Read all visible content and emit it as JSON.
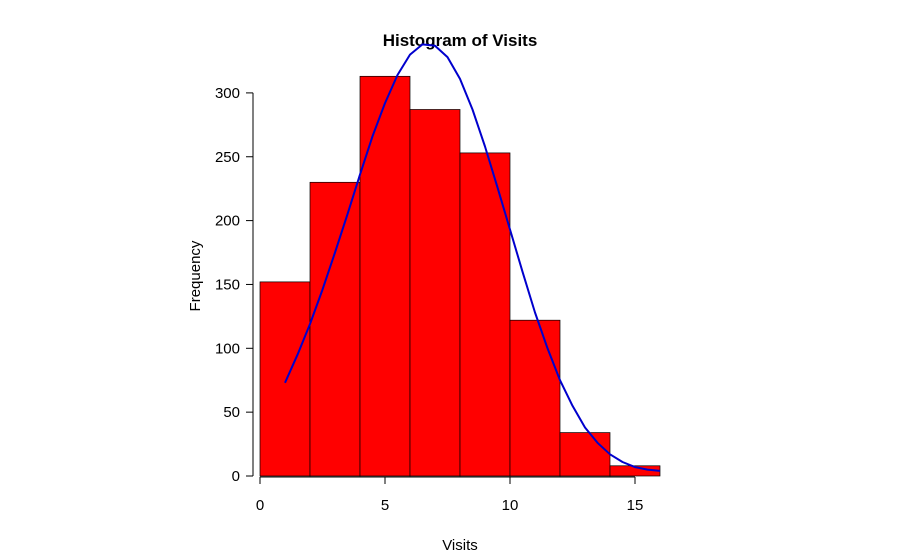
{
  "chart_data": {
    "type": "bar",
    "title": "Histogram of Visits",
    "xlabel": "Visits",
    "ylabel": "Frequency",
    "bins": [
      {
        "start": 0,
        "end": 2,
        "count": 152
      },
      {
        "start": 2,
        "end": 4,
        "count": 230
      },
      {
        "start": 4,
        "end": 6,
        "count": 313
      },
      {
        "start": 6,
        "end": 8,
        "count": 287
      },
      {
        "start": 8,
        "end": 10,
        "count": 253
      },
      {
        "start": 10,
        "end": 12,
        "count": 122
      },
      {
        "start": 12,
        "end": 14,
        "count": 34
      },
      {
        "start": 14,
        "end": 16,
        "count": 8
      }
    ],
    "x_ticks": [
      0,
      5,
      10,
      15
    ],
    "y_ticks": [
      0,
      50,
      100,
      150,
      200,
      250,
      300
    ],
    "xlim": [
      0,
      16
    ],
    "ylim": [
      0,
      313
    ],
    "bar_color": "#ff0000",
    "bar_edge_color": "#000000",
    "curve": {
      "color": "#0000cd",
      "points": [
        [
          1.0,
          73
        ],
        [
          1.5,
          95
        ],
        [
          2.0,
          119
        ],
        [
          2.5,
          146
        ],
        [
          3.0,
          175
        ],
        [
          3.5,
          205
        ],
        [
          4.0,
          236
        ],
        [
          4.5,
          266
        ],
        [
          5.0,
          292
        ],
        [
          5.5,
          314
        ],
        [
          6.0,
          330
        ],
        [
          6.5,
          338
        ],
        [
          7.0,
          337
        ],
        [
          7.5,
          328
        ],
        [
          8.0,
          311
        ],
        [
          8.5,
          287
        ],
        [
          9.0,
          258
        ],
        [
          9.5,
          226
        ],
        [
          10.0,
          193
        ],
        [
          10.5,
          160
        ],
        [
          11.0,
          128
        ],
        [
          11.5,
          100
        ],
        [
          12.0,
          75
        ],
        [
          12.5,
          55
        ],
        [
          13.0,
          38
        ],
        [
          13.5,
          26
        ],
        [
          14.0,
          17
        ],
        [
          14.5,
          11
        ],
        [
          15.0,
          7
        ],
        [
          15.5,
          5
        ],
        [
          16.0,
          4
        ]
      ]
    }
  }
}
